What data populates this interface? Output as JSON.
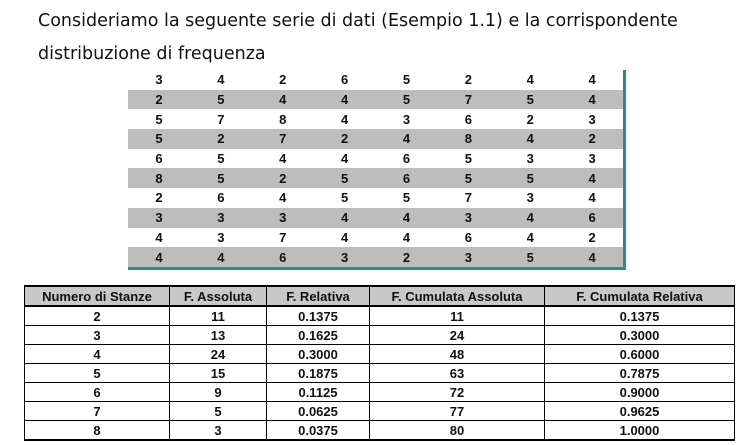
{
  "intro_text": "Consideriamo la seguente serie di dati (Esempio 1.1) e la corrispondente distribuzione di frequenza",
  "data_series": [
    [
      "3",
      "4",
      "2",
      "6",
      "5",
      "2",
      "4",
      "4"
    ],
    [
      "2",
      "5",
      "4",
      "4",
      "5",
      "7",
      "5",
      "4"
    ],
    [
      "5",
      "7",
      "8",
      "4",
      "3",
      "6",
      "2",
      "3"
    ],
    [
      "5",
      "2",
      "7",
      "2",
      "4",
      "8",
      "4",
      "2"
    ],
    [
      "6",
      "5",
      "4",
      "4",
      "6",
      "5",
      "3",
      "3"
    ],
    [
      "8",
      "5",
      "2",
      "5",
      "6",
      "5",
      "5",
      "4"
    ],
    [
      "2",
      "6",
      "4",
      "5",
      "5",
      "7",
      "3",
      "4"
    ],
    [
      "3",
      "3",
      "3",
      "4",
      "4",
      "3",
      "4",
      "6"
    ],
    [
      "4",
      "3",
      "7",
      "4",
      "4",
      "6",
      "4",
      "2"
    ],
    [
      "4",
      "4",
      "6",
      "3",
      "2",
      "3",
      "5",
      "4"
    ]
  ],
  "frequency_table": {
    "headers": [
      "Numero di Stanze",
      "F. Assoluta",
      "F. Relativa",
      "F. Cumulata Assoluta",
      "F. Cumulata Relativa"
    ],
    "rows": [
      [
        "2",
        "11",
        "0.1375",
        "11",
        "0.1375"
      ],
      [
        "3",
        "13",
        "0.1625",
        "24",
        "0.3000"
      ],
      [
        "4",
        "24",
        "0.3000",
        "48",
        "0.6000"
      ],
      [
        "5",
        "15",
        "0.1875",
        "63",
        "0.7875"
      ],
      [
        "6",
        "9",
        "0.1125",
        "72",
        "0.9000"
      ],
      [
        "7",
        "5",
        "0.0625",
        "77",
        "0.9625"
      ],
      [
        "8",
        "3",
        "0.0375",
        "80",
        "1.0000"
      ]
    ]
  },
  "colors": {
    "grid_stripe": "#bdbdbd",
    "grid_border": "#2e8b80",
    "header_bg": "#c8c8c8"
  }
}
